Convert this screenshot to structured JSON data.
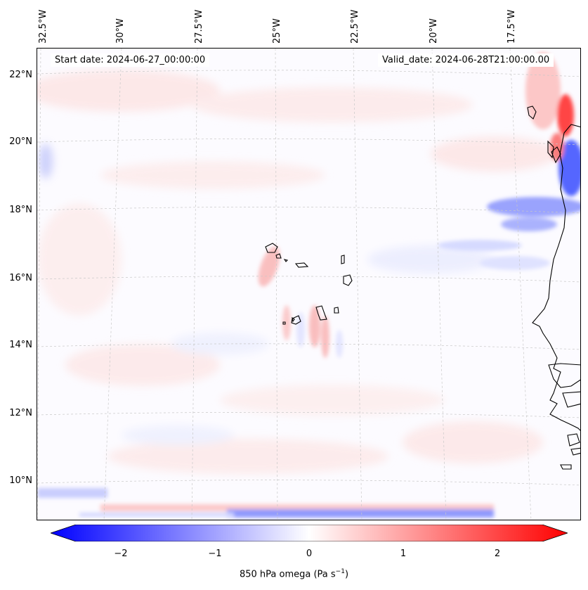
{
  "header": {
    "start_date": "Start date: 2024-06-27_00:00:00",
    "valid_date": "Valid_date: 2024-06-28T21:00:00.00"
  },
  "axes": {
    "lon_labels": [
      "32.5°W",
      "30°W",
      "27.5°W",
      "25°W",
      "22.5°W",
      "20°W",
      "17.5°W"
    ],
    "lat_labels": [
      "22°N",
      "20°N",
      "18°N",
      "16°N",
      "14°N",
      "12°N",
      "10°N"
    ]
  },
  "colorbar": {
    "ticks": [
      "−2",
      "−1",
      "0",
      "1",
      "2"
    ],
    "label": "850 hPa omega (Pa s",
    "label_sup": "−1",
    "label_end": ")",
    "range": [
      -2.7,
      2.7
    ],
    "colormap": "bwr"
  },
  "colors": {
    "coast": "#000000",
    "grid": "#c8c8c8",
    "negative": "#0000ff",
    "positive": "#ff0000"
  }
}
